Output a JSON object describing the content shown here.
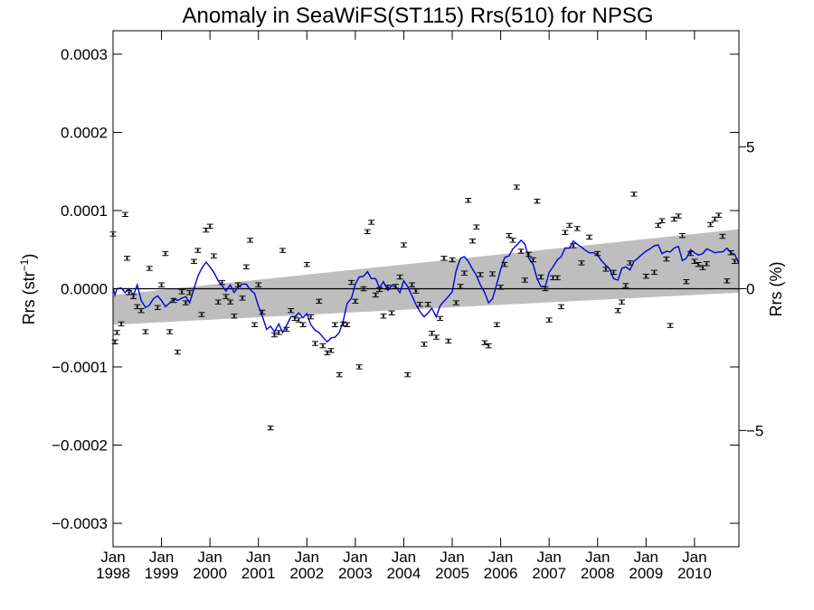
{
  "chart_data": {
    "type": "scatter",
    "title": "Anomaly in SeaWiFS(ST115) Rrs(510) for NPSG",
    "ylabel_main": "Rrs (str",
    "ylabel_sup": "−1",
    "ylabel_close": ")",
    "ylabel_right": "Rrs (%)",
    "xlim": [
      1998.0,
      2010.917
    ],
    "ylim": [
      -0.00033,
      0.00033
    ],
    "ylim_right": [
      -9.1,
      9.1
    ],
    "y_ticks": [
      {
        "value": 0.0003,
        "label": "0.0003"
      },
      {
        "value": 0.0002,
        "label": "0.0002"
      },
      {
        "value": 0.0001,
        "label": "0.0001"
      },
      {
        "value": 0.0,
        "label": "0.0000"
      },
      {
        "value": -0.0001,
        "label": "−0.0001"
      },
      {
        "value": -0.0002,
        "label": "−0.0002"
      },
      {
        "value": -0.0003,
        "label": "−0.0003"
      }
    ],
    "y_right_ticks": [
      {
        "value": 5,
        "label": "5"
      },
      {
        "value": 0,
        "label": "0"
      },
      {
        "value": -5,
        "label": "−5"
      }
    ],
    "x_ticks": [
      {
        "value": 1998,
        "month": "Jan",
        "year": "1998"
      },
      {
        "value": 1999,
        "month": "Jan",
        "year": "1999"
      },
      {
        "value": 2000,
        "month": "Jan",
        "year": "2000"
      },
      {
        "value": 2001,
        "month": "Jan",
        "year": "2001"
      },
      {
        "value": 2002,
        "month": "Jan",
        "year": "2002"
      },
      {
        "value": 2003,
        "month": "Jan",
        "year": "2003"
      },
      {
        "value": 2004,
        "month": "Jan",
        "year": "2004"
      },
      {
        "value": 2005,
        "month": "Jan",
        "year": "2005"
      },
      {
        "value": 2006,
        "month": "Jan",
        "year": "2006"
      },
      {
        "value": 2007,
        "month": "Jan",
        "year": "2007"
      },
      {
        "value": 2008,
        "month": "Jan",
        "year": "2008"
      },
      {
        "value": 2009,
        "month": "Jan",
        "year": "2009"
      },
      {
        "value": 2010,
        "month": "Jan",
        "year": "2010"
      }
    ],
    "trend_band": {
      "start": {
        "x": 1998.0,
        "lower": -4.6e-05,
        "upper": -8e-06
      },
      "end": {
        "x": 2010.917,
        "lower": -5e-06,
        "upper": 7.6e-05
      }
    },
    "zero_line": 0.0,
    "colors": {
      "running_mean": "#0000dd",
      "band": "#bebebe",
      "points": "#000000"
    },
    "points": [
      {
        "x": 1998.0,
        "y": 7e-05
      },
      {
        "x": 1998.04,
        "y": -6.8e-05
      },
      {
        "x": 1998.08,
        "y": -5.6e-05
      },
      {
        "x": 1998.17,
        "y": -4.5e-05
      },
      {
        "x": 1998.25,
        "y": 9.5e-05
      },
      {
        "x": 1998.29,
        "y": 3.9e-05
      },
      {
        "x": 1998.33,
        "y": -5e-06
      },
      {
        "x": 1998.42,
        "y": -1e-05
      },
      {
        "x": 1998.5,
        "y": -2.3e-05
      },
      {
        "x": 1998.58,
        "y": -2.8e-05
      },
      {
        "x": 1998.67,
        "y": -5.5e-05
      },
      {
        "x": 1998.75,
        "y": 2.6e-05
      },
      {
        "x": 1998.92,
        "y": -2.4e-05
      },
      {
        "x": 1999.0,
        "y": 5e-06
      },
      {
        "x": 1999.08,
        "y": 4.5e-05
      },
      {
        "x": 1999.17,
        "y": -5.5e-05
      },
      {
        "x": 1999.25,
        "y": -1.5e-05
      },
      {
        "x": 1999.33,
        "y": -8.1e-05
      },
      {
        "x": 1999.42,
        "y": -4e-06
      },
      {
        "x": 1999.5,
        "y": -1.8e-05
      },
      {
        "x": 1999.58,
        "y": -5e-06
      },
      {
        "x": 1999.67,
        "y": 3.5e-05
      },
      {
        "x": 1999.75,
        "y": 4.9e-05
      },
      {
        "x": 1999.83,
        "y": -3.3e-05
      },
      {
        "x": 1999.92,
        "y": 7.5e-05
      },
      {
        "x": 2000.0,
        "y": 8e-05
      },
      {
        "x": 2000.08,
        "y": 4.2e-05
      },
      {
        "x": 2000.17,
        "y": -1.7e-05
      },
      {
        "x": 2000.25,
        "y": 8e-06
      },
      {
        "x": 2000.33,
        "y": -1e-05
      },
      {
        "x": 2000.42,
        "y": -1.7e-05
      },
      {
        "x": 2000.5,
        "y": -3.5e-05
      },
      {
        "x": 2000.58,
        "y": 5e-06
      },
      {
        "x": 2000.67,
        "y": -1.2e-05
      },
      {
        "x": 2000.75,
        "y": 2.8e-05
      },
      {
        "x": 2000.83,
        "y": 6.2e-05
      },
      {
        "x": 2000.92,
        "y": -4.6e-05
      },
      {
        "x": 2001.0,
        "y": 5e-06
      },
      {
        "x": 2001.08,
        "y": -3e-05
      },
      {
        "x": 2001.25,
        "y": -0.000178
      },
      {
        "x": 2001.33,
        "y": -5.9e-05
      },
      {
        "x": 2001.42,
        "y": -5.6e-05
      },
      {
        "x": 2001.5,
        "y": 4.9e-05
      },
      {
        "x": 2001.58,
        "y": -5.2e-05
      },
      {
        "x": 2001.67,
        "y": -2.8e-05
      },
      {
        "x": 2001.75,
        "y": -3.8e-05
      },
      {
        "x": 2001.83,
        "y": -4e-05
      },
      {
        "x": 2001.92,
        "y": -4.6e-05
      },
      {
        "x": 2002.0,
        "y": 3.1e-05
      },
      {
        "x": 2002.08,
        "y": -3.6e-05
      },
      {
        "x": 2002.17,
        "y": -7e-05
      },
      {
        "x": 2002.25,
        "y": -1.6e-05
      },
      {
        "x": 2002.33,
        "y": -7.3e-05
      },
      {
        "x": 2002.42,
        "y": -8.2e-05
      },
      {
        "x": 2002.5,
        "y": -7.9e-05
      },
      {
        "x": 2002.58,
        "y": -4.6e-05
      },
      {
        "x": 2002.67,
        "y": -0.00011
      },
      {
        "x": 2002.75,
        "y": -4.5e-05
      },
      {
        "x": 2002.83,
        "y": -4.6e-05
      },
      {
        "x": 2002.92,
        "y": 8e-06
      },
      {
        "x": 2003.0,
        "y": -1.6e-05
      },
      {
        "x": 2003.08,
        "y": -0.0001
      },
      {
        "x": 2003.17,
        "y": 0.0
      },
      {
        "x": 2003.25,
        "y": 7.3e-05
      },
      {
        "x": 2003.33,
        "y": 8.5e-05
      },
      {
        "x": 2003.42,
        "y": -8e-06
      },
      {
        "x": 2003.5,
        "y": -1e-06
      },
      {
        "x": 2003.58,
        "y": -3.5e-05
      },
      {
        "x": 2003.67,
        "y": 2e-06
      },
      {
        "x": 2003.75,
        "y": -3.1e-05
      },
      {
        "x": 2003.83,
        "y": 3e-06
      },
      {
        "x": 2003.92,
        "y": 1.5e-05
      },
      {
        "x": 2004.0,
        "y": 5.6e-05
      },
      {
        "x": 2004.08,
        "y": -0.00011
      },
      {
        "x": 2004.17,
        "y": 5e-06
      },
      {
        "x": 2004.25,
        "y": -3e-06
      },
      {
        "x": 2004.33,
        "y": -2e-05
      },
      {
        "x": 2004.42,
        "y": -7.1e-05
      },
      {
        "x": 2004.5,
        "y": -2e-05
      },
      {
        "x": 2004.58,
        "y": -5.7e-05
      },
      {
        "x": 2004.67,
        "y": -6.2e-05
      },
      {
        "x": 2004.75,
        "y": -3.8e-05
      },
      {
        "x": 2004.83,
        "y": 3.9e-05
      },
      {
        "x": 2004.92,
        "y": -6.7e-05
      },
      {
        "x": 2005.0,
        "y": 3.7e-05
      },
      {
        "x": 2005.08,
        "y": -1.8e-05
      },
      {
        "x": 2005.17,
        "y": 3e-06
      },
      {
        "x": 2005.25,
        "y": 2e-05
      },
      {
        "x": 2005.33,
        "y": 0.000113
      },
      {
        "x": 2005.42,
        "y": 6.1e-05
      },
      {
        "x": 2005.5,
        "y": 7.9e-05
      },
      {
        "x": 2005.58,
        "y": 1.8e-05
      },
      {
        "x": 2005.67,
        "y": -6.9e-05
      },
      {
        "x": 2005.75,
        "y": -7.3e-05
      },
      {
        "x": 2005.83,
        "y": 1.9e-05
      },
      {
        "x": 2005.92,
        "y": -4.6e-05
      },
      {
        "x": 2006.0,
        "y": 2e-06
      },
      {
        "x": 2006.08,
        "y": 3.1e-05
      },
      {
        "x": 2006.17,
        "y": 6.8e-05
      },
      {
        "x": 2006.25,
        "y": 6.2e-05
      },
      {
        "x": 2006.33,
        "y": 0.00013
      },
      {
        "x": 2006.42,
        "y": 4.8e-05
      },
      {
        "x": 2006.5,
        "y": 1.1e-05
      },
      {
        "x": 2006.58,
        "y": 4.4e-05
      },
      {
        "x": 2006.67,
        "y": 3.7e-05
      },
      {
        "x": 2006.75,
        "y": 0.000112
      },
      {
        "x": 2006.83,
        "y": 1.5e-05
      },
      {
        "x": 2006.92,
        "y": 0.0
      },
      {
        "x": 2007.0,
        "y": -4e-05
      },
      {
        "x": 2007.08,
        "y": 1.4e-05
      },
      {
        "x": 2007.17,
        "y": 1.4e-05
      },
      {
        "x": 2007.25,
        "y": -2.3e-05
      },
      {
        "x": 2007.33,
        "y": 7.2e-05
      },
      {
        "x": 2007.42,
        "y": 8.1e-05
      },
      {
        "x": 2007.5,
        "y": 5.5e-05
      },
      {
        "x": 2007.58,
        "y": 7.7e-05
      },
      {
        "x": 2007.67,
        "y": 3.3e-05
      },
      {
        "x": 2007.83,
        "y": 6.6e-05
      },
      {
        "x": 2008.0,
        "y": 4.5e-05
      },
      {
        "x": 2008.17,
        "y": 2.5e-05
      },
      {
        "x": 2008.33,
        "y": 2.1e-05
      },
      {
        "x": 2008.42,
        "y": -2.8e-05
      },
      {
        "x": 2008.5,
        "y": -1.7e-05
      },
      {
        "x": 2008.58,
        "y": 4e-06
      },
      {
        "x": 2008.67,
        "y": 3.3e-05
      },
      {
        "x": 2008.75,
        "y": 0.000121
      },
      {
        "x": 2009.0,
        "y": 1.6e-05
      },
      {
        "x": 2009.17,
        "y": 2.1e-05
      },
      {
        "x": 2009.25,
        "y": 8.1e-05
      },
      {
        "x": 2009.33,
        "y": 8.7e-05
      },
      {
        "x": 2009.42,
        "y": 3.8e-05
      },
      {
        "x": 2009.5,
        "y": -4.7e-05
      },
      {
        "x": 2009.58,
        "y": 8.9e-05
      },
      {
        "x": 2009.67,
        "y": 9.3e-05
      },
      {
        "x": 2009.75,
        "y": 6.8e-05
      },
      {
        "x": 2009.83,
        "y": 9e-06
      },
      {
        "x": 2009.92,
        "y": 4.5e-05
      },
      {
        "x": 2010.0,
        "y": 3.5e-05
      },
      {
        "x": 2010.08,
        "y": 3.1e-05
      },
      {
        "x": 2010.17,
        "y": 2.7e-05
      },
      {
        "x": 2010.25,
        "y": 3.2e-05
      },
      {
        "x": 2010.33,
        "y": 8.2e-05
      },
      {
        "x": 2010.42,
        "y": 8.9e-05
      },
      {
        "x": 2010.5,
        "y": 9.4e-05
      },
      {
        "x": 2010.58,
        "y": 6.7e-05
      },
      {
        "x": 2010.67,
        "y": 1e-05
      },
      {
        "x": 2010.75,
        "y": 4.6e-05
      },
      {
        "x": 2010.83,
        "y": 3.5e-05
      }
    ],
    "running_mean": [
      [
        1998.0,
        1e-06
      ],
      [
        1998.04,
        -8e-06
      ],
      [
        1998.08,
        0.0
      ],
      [
        1998.17,
        1e-06
      ],
      [
        1998.25,
        -5e-06
      ],
      [
        1998.33,
        0.0
      ],
      [
        1998.42,
        -8e-06
      ],
      [
        1998.5,
        5e-06
      ],
      [
        1998.58,
        -1.5e-05
      ],
      [
        1998.67,
        -2.4e-05
      ],
      [
        1998.75,
        -2.1e-05
      ],
      [
        1998.83,
        -1.3e-05
      ],
      [
        1998.92,
        -9e-06
      ],
      [
        1999.0,
        -1.5e-05
      ],
      [
        1999.08,
        -2.3e-05
      ],
      [
        1999.17,
        -1.8e-05
      ],
      [
        1999.25,
        -1.3e-05
      ],
      [
        1999.33,
        -1.5e-05
      ],
      [
        1999.42,
        -1.2e-05
      ],
      [
        1999.5,
        -1e-05
      ],
      [
        1999.58,
        -1.8e-05
      ],
      [
        1999.67,
        0.0
      ],
      [
        1999.75,
        1.6e-05
      ],
      [
        1999.83,
        2.6e-05
      ],
      [
        1999.92,
        3.4e-05
      ],
      [
        2000.0,
        2.8e-05
      ],
      [
        2000.08,
        2.1e-05
      ],
      [
        2000.17,
        1e-05
      ],
      [
        2000.25,
        4e-06
      ],
      [
        2000.33,
        -3e-06
      ],
      [
        2000.42,
        5e-06
      ],
      [
        2000.5,
        -5e-06
      ],
      [
        2000.58,
        2e-06
      ],
      [
        2000.67,
        6e-06
      ],
      [
        2000.75,
        6e-06
      ],
      [
        2000.83,
        -1e-06
      ],
      [
        2000.92,
        -6e-06
      ],
      [
        2001.0,
        -2.2e-05
      ],
      [
        2001.08,
        -3.5e-05
      ],
      [
        2001.17,
        -5.2e-05
      ],
      [
        2001.25,
        -4.8e-05
      ],
      [
        2001.33,
        -5.5e-05
      ],
      [
        2001.42,
        -4.5e-05
      ],
      [
        2001.5,
        -5.6e-05
      ],
      [
        2001.58,
        -4.7e-05
      ],
      [
        2001.67,
        -3.6e-05
      ],
      [
        2001.75,
        -3.6e-05
      ],
      [
        2001.83,
        -3.1e-05
      ],
      [
        2001.92,
        -3.7e-05
      ],
      [
        2002.0,
        -3.2e-05
      ],
      [
        2002.08,
        -4.6e-05
      ],
      [
        2002.17,
        -5.3e-05
      ],
      [
        2002.25,
        -5.6e-05
      ],
      [
        2002.33,
        -6.2e-05
      ],
      [
        2002.42,
        -6.8e-05
      ],
      [
        2002.5,
        -6.3e-05
      ],
      [
        2002.58,
        -6.2e-05
      ],
      [
        2002.67,
        -5.6e-05
      ],
      [
        2002.75,
        -4.1e-05
      ],
      [
        2002.83,
        -1.9e-05
      ],
      [
        2002.92,
        -1.2e-05
      ],
      [
        2003.0,
        6e-06
      ],
      [
        2003.08,
        1.5e-05
      ],
      [
        2003.17,
        1.6e-05
      ],
      [
        2003.25,
        2.2e-05
      ],
      [
        2003.33,
        1.3e-05
      ],
      [
        2003.42,
        1.3e-05
      ],
      [
        2003.5,
        1e-06
      ],
      [
        2003.58,
        9e-06
      ],
      [
        2003.67,
        -2e-06
      ],
      [
        2003.75,
        4e-06
      ],
      [
        2003.83,
        3e-06
      ],
      [
        2003.92,
        -5e-06
      ],
      [
        2004.0,
        1e-05
      ],
      [
        2004.08,
        3e-06
      ],
      [
        2004.17,
        -9e-06
      ],
      [
        2004.25,
        -2e-05
      ],
      [
        2004.33,
        -2.9e-05
      ],
      [
        2004.42,
        -3.6e-05
      ],
      [
        2004.5,
        -3.1e-05
      ],
      [
        2004.58,
        -2.5e-05
      ],
      [
        2004.67,
        -3.6e-05
      ],
      [
        2004.75,
        -2.2e-05
      ],
      [
        2004.83,
        -1.6e-05
      ],
      [
        2004.92,
        -1e-05
      ],
      [
        2005.0,
        -4e-06
      ],
      [
        2005.08,
        2.3e-05
      ],
      [
        2005.17,
        3.9e-05
      ],
      [
        2005.25,
        4.1e-05
      ],
      [
        2005.33,
        3.5e-05
      ],
      [
        2005.42,
        2.5e-05
      ],
      [
        2005.5,
        1.7e-05
      ],
      [
        2005.58,
        5e-06
      ],
      [
        2005.67,
        -5e-06
      ],
      [
        2005.75,
        -1.8e-05
      ],
      [
        2005.83,
        -1.3e-05
      ],
      [
        2005.92,
        6e-06
      ],
      [
        2006.0,
        2.5e-05
      ],
      [
        2006.08,
        4e-05
      ],
      [
        2006.17,
        4.2e-05
      ],
      [
        2006.25,
        5.1e-05
      ],
      [
        2006.33,
        5.6e-05
      ],
      [
        2006.42,
        6.2e-05
      ],
      [
        2006.5,
        5.7e-05
      ],
      [
        2006.58,
        3.9e-05
      ],
      [
        2006.67,
        3.1e-05
      ],
      [
        2006.75,
        1.3e-05
      ],
      [
        2006.83,
        3e-06
      ],
      [
        2006.92,
        3e-06
      ],
      [
        2007.0,
        2.1e-05
      ],
      [
        2007.08,
        2.8e-05
      ],
      [
        2007.17,
        3.7e-05
      ],
      [
        2007.25,
        4.1e-05
      ],
      [
        2007.33,
        5.2e-05
      ],
      [
        2007.42,
        5.2e-05
      ],
      [
        2007.5,
        6.1e-05
      ],
      [
        2007.58,
        5.7e-05
      ],
      [
        2007.67,
        5.3e-05
      ],
      [
        2007.75,
        4.9e-05
      ],
      [
        2007.83,
        4.6e-05
      ],
      [
        2007.92,
        4.6e-05
      ],
      [
        2008.0,
        4.3e-05
      ],
      [
        2008.08,
        3.6e-05
      ],
      [
        2008.17,
        3e-05
      ],
      [
        2008.25,
        2.5e-05
      ],
      [
        2008.33,
        1.3e-05
      ],
      [
        2008.42,
        1.1e-05
      ],
      [
        2008.5,
        2.6e-05
      ],
      [
        2008.58,
        2.8e-05
      ],
      [
        2008.67,
        2.4e-05
      ],
      [
        2008.75,
        3.5e-05
      ],
      [
        2008.83,
        3.9e-05
      ],
      [
        2008.92,
        4.4e-05
      ],
      [
        2009.0,
        4.8e-05
      ],
      [
        2009.08,
        5.1e-05
      ],
      [
        2009.17,
        5.5e-05
      ],
      [
        2009.25,
        5.6e-05
      ],
      [
        2009.33,
        4.5e-05
      ],
      [
        2009.42,
        4.8e-05
      ],
      [
        2009.5,
        4.7e-05
      ],
      [
        2009.58,
        5.2e-05
      ],
      [
        2009.67,
        5.4e-05
      ],
      [
        2009.75,
        3.6e-05
      ],
      [
        2009.83,
        3.9e-05
      ],
      [
        2009.92,
        5e-05
      ],
      [
        2010.0,
        4.6e-05
      ],
      [
        2010.08,
        4.3e-05
      ],
      [
        2010.17,
        4.5e-05
      ],
      [
        2010.25,
        5.1e-05
      ],
      [
        2010.33,
        4.9e-05
      ],
      [
        2010.42,
        4.6e-05
      ],
      [
        2010.5,
        4.7e-05
      ],
      [
        2010.58,
        4.7e-05
      ],
      [
        2010.67,
        5.2e-05
      ],
      [
        2010.75,
        4.6e-05
      ],
      [
        2010.83,
        4.4e-05
      ],
      [
        2010.917,
        3.2e-05
      ]
    ]
  }
}
